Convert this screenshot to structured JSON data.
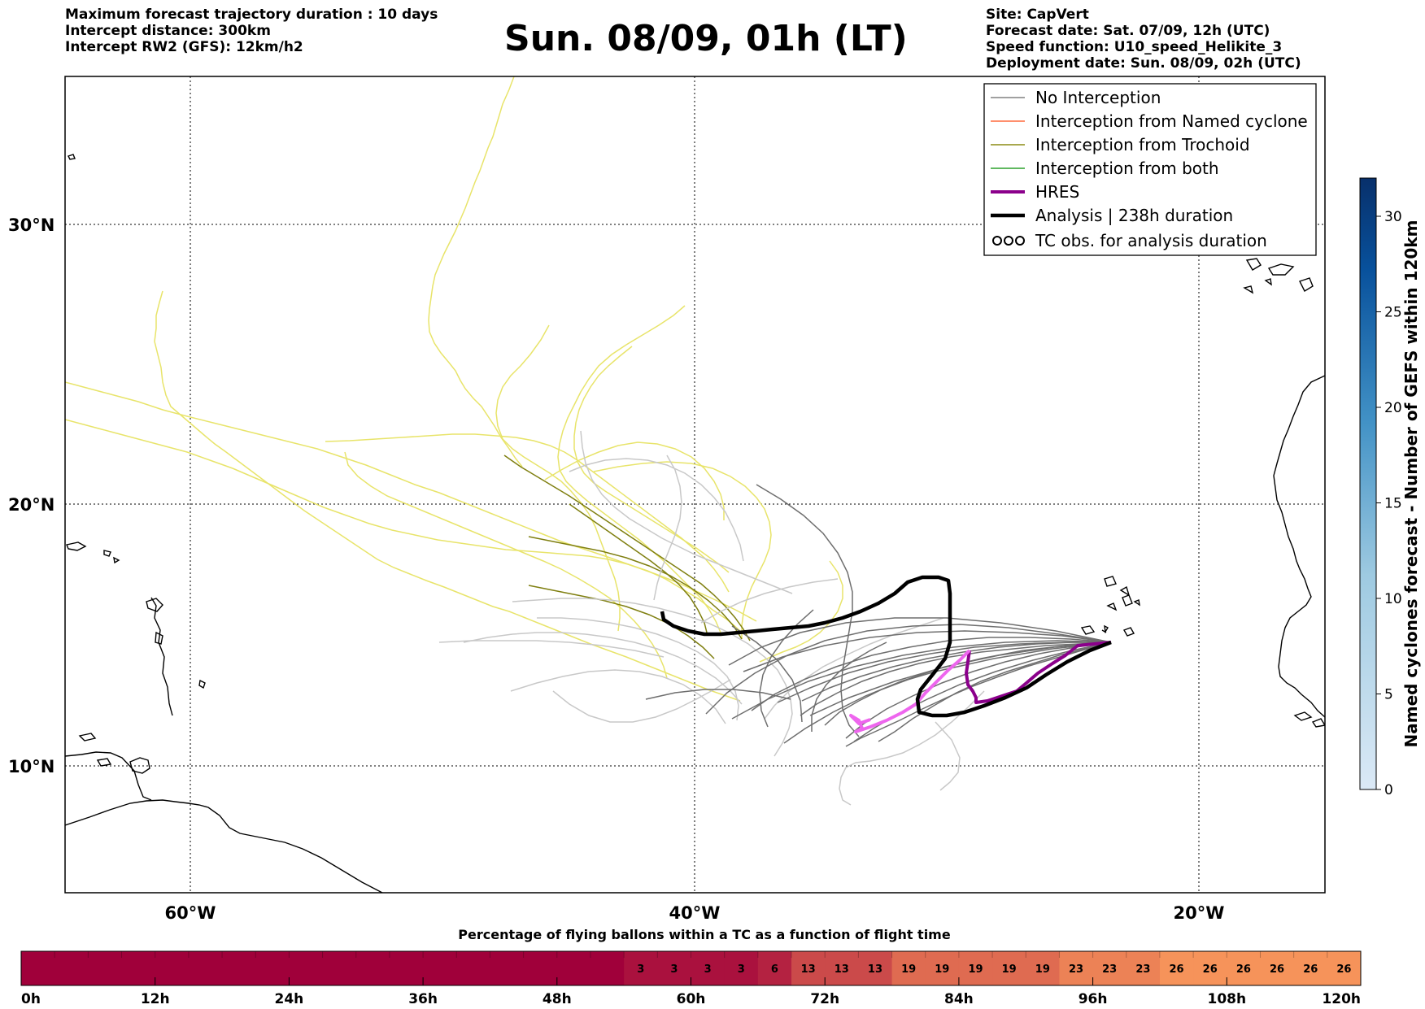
{
  "header": {
    "left": [
      "Maximum forecast trajectory duration : 10 days",
      "Intercept distance: 300km",
      "Intercept RW2 (GFS):  12km/h2"
    ],
    "title": "Sun. 08/09, 01h (LT)",
    "right": [
      "Site: CapVert",
      "Forecast date: Sat. 07/09, 12h (UTC)",
      "Speed function: U10_speed_Helikite_3",
      "Deployment date: Sun. 08/09, 02h (UTC)"
    ]
  },
  "map": {
    "lon_range": [
      -65,
      -15
    ],
    "lat_range": [
      5.5,
      35
    ],
    "lat_ticks": [
      "30°N",
      "20°N",
      "10°N"
    ],
    "lon_ticks": [
      "60°W",
      "40°W",
      "20°W"
    ],
    "grid": true,
    "site_marker": {
      "lon": -22.8,
      "lat": 14.8
    }
  },
  "legend": {
    "placement": "top-right",
    "items": [
      {
        "label": "No Interception",
        "color": "#808080",
        "style": "thin"
      },
      {
        "label": "Interception from Named cyclone",
        "color": "#ff6a3d",
        "style": "thin"
      },
      {
        "label": "Interception from Trochoid",
        "color": "#8b8b14",
        "style": "thin"
      },
      {
        "label": "Interception from both",
        "color": "#2ca02c",
        "style": "thin"
      },
      {
        "label": "HRES",
        "color": "#8b008b",
        "style": "thick"
      },
      {
        "label": "Analysis | 238h duration",
        "color": "#000000",
        "style": "thick"
      },
      {
        "label": "TC obs. for analysis duration",
        "color": "#000000",
        "style": "loops"
      }
    ]
  },
  "colorbar_right": {
    "title": "Named cyclones forecast - Number of GEFS within 120km",
    "range": [
      0,
      32
    ],
    "ticks": [
      "0",
      "5",
      "10",
      "15",
      "20",
      "25",
      "30"
    ],
    "color_low": "#dbe9f6",
    "color_high": "#08306b"
  },
  "flight_bar": {
    "title": "Percentage of flying ballons within a TC as a function of flight time",
    "time_labels": [
      "0h",
      "12h",
      "24h",
      "36h",
      "48h",
      "60h",
      "72h",
      "84h",
      "96h",
      "108h",
      "120h"
    ],
    "segments_hours": 3,
    "percent": [
      0,
      0,
      0,
      0,
      0,
      0,
      0,
      0,
      0,
      0,
      0,
      0,
      0,
      0,
      0,
      0,
      0,
      0,
      3,
      3,
      3,
      3,
      6,
      13,
      13,
      13,
      19,
      19,
      19,
      19,
      19,
      23,
      23,
      23,
      26,
      26,
      26,
      26,
      26,
      26
    ],
    "percent_labels": [
      "3",
      "3",
      "3",
      "3",
      "6",
      "13",
      "13",
      "13",
      "19",
      "19",
      "19",
      "19",
      "19",
      "23",
      "23",
      "23",
      "26",
      "26",
      "26",
      "26",
      "26",
      "26"
    ],
    "color_zero": "#a0003a",
    "color_max": "#f6935a"
  }
}
